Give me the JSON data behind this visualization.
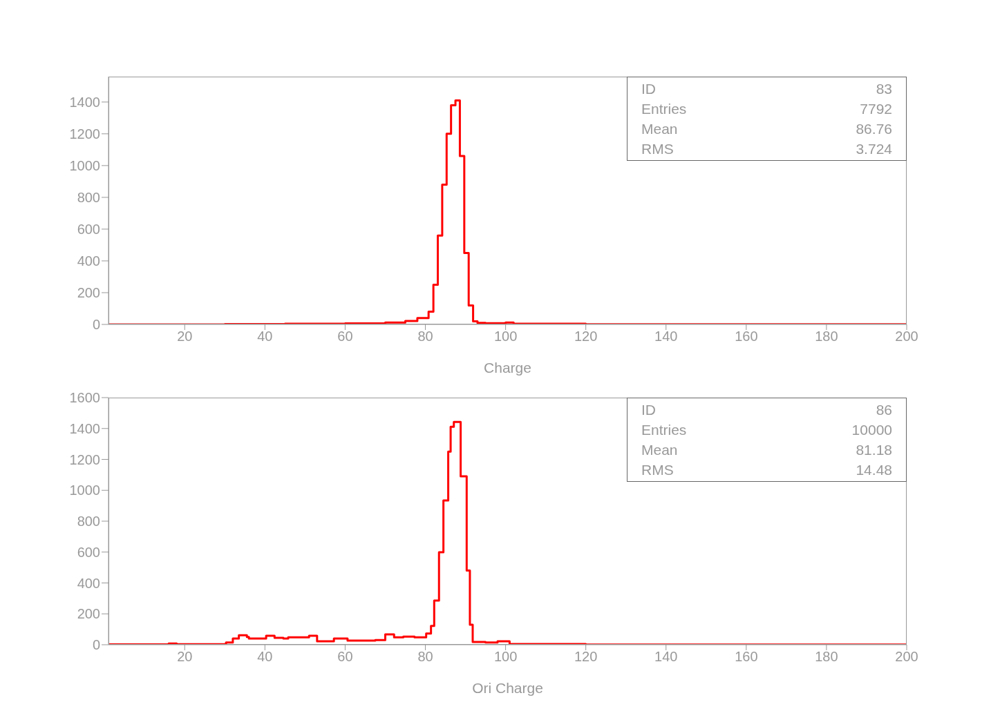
{
  "chart_data": [
    {
      "type": "histogram",
      "xlabel": "Charge",
      "color": "#ff0000",
      "bins": [
        1,
        30,
        45,
        60,
        70,
        75,
        78,
        80.8,
        82,
        83.1,
        84.2,
        85.3,
        86.4,
        87.5,
        88.6,
        89.7,
        90.8,
        91.9,
        93,
        95,
        100,
        102,
        120,
        200
      ],
      "values": [
        0,
        2,
        4,
        6,
        12,
        22,
        40,
        80,
        250,
        560,
        880,
        1200,
        1380,
        1410,
        1060,
        450,
        120,
        20,
        10,
        8,
        12,
        4,
        1
      ],
      "xlim": [
        1,
        200
      ],
      "xticks": [
        20,
        40,
        60,
        80,
        100,
        120,
        140,
        160,
        180,
        200
      ],
      "ylim": [
        0,
        1560
      ],
      "yticks": [
        0,
        200,
        400,
        600,
        800,
        1000,
        1200,
        1400
      ],
      "annotations": [
        "ID",
        "83",
        "Entries",
        "7792",
        "Mean",
        "86.76",
        "RMS",
        "3.724"
      ]
    },
    {
      "type": "histogram",
      "xlabel": "Ori Charge",
      "color": "#ff0000",
      "bins": [
        1,
        16,
        18,
        30.3,
        32,
        33.5,
        35.5,
        36,
        40.3,
        42.4,
        44.6,
        45.8,
        51,
        53,
        57.2,
        60.6,
        67.5,
        70,
        72.2,
        74.5,
        77.3,
        80.2,
        81.4,
        82.2,
        83.4,
        84.5,
        85.7,
        86.3,
        87.1,
        88.8,
        90.3,
        91.1,
        91.8,
        95,
        98,
        101,
        120,
        200
      ],
      "values": [
        2,
        8,
        3,
        15,
        40,
        62,
        50,
        40,
        58,
        45,
        40,
        48,
        58,
        22,
        40,
        27,
        30,
        67,
        48,
        53,
        48,
        73,
        122,
        286,
        599,
        934,
        1250,
        1411,
        1443,
        1090,
        480,
        130,
        18,
        15,
        22,
        5,
        1
      ],
      "xlim": [
        1,
        200
      ],
      "xticks": [
        20,
        40,
        60,
        80,
        100,
        120,
        140,
        160,
        180,
        200
      ],
      "ylim": [
        0,
        1600
      ],
      "yticks": [
        0,
        200,
        400,
        600,
        800,
        1000,
        1200,
        1400,
        1600
      ],
      "annotations": [
        "ID",
        "86",
        "Entries",
        "10000",
        "Mean",
        "81.18",
        "RMS",
        "14.48"
      ]
    }
  ]
}
